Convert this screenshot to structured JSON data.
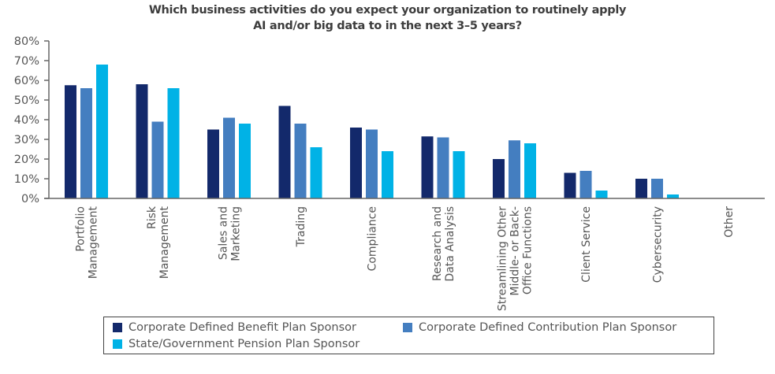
{
  "chart_data": {
    "type": "bar",
    "title": "Which business activities do you expect your organization to routinely apply AI and/or big data to in the next 3–5 years?",
    "title_lines": [
      "Which business activities do you expect your organization to routinely apply",
      "AI and/or big data to in the next 3–5 years?"
    ],
    "xlabel": "",
    "ylabel": "",
    "ylim": [
      0,
      80
    ],
    "y_ticks": [
      0,
      10,
      20,
      30,
      40,
      50,
      60,
      70,
      80
    ],
    "y_tick_labels": [
      "0%",
      "10%",
      "20%",
      "30%",
      "40%",
      "50%",
      "60%",
      "70%",
      "80%"
    ],
    "grid": false,
    "legend_position": "bottom",
    "categories": [
      "Portfolio Management",
      "Risk Management",
      "Sales and Marketing",
      "Trading",
      "Compliance",
      "Research and Data Analysis",
      "Streamlining Other Middle- or Back-Office Functions",
      "Client Service",
      "Cybersecurity",
      "Other"
    ],
    "category_label_lines": [
      [
        "Portfolio",
        "Management"
      ],
      [
        "Risk",
        "Management"
      ],
      [
        "Sales and",
        "Marketing"
      ],
      [
        "Trading"
      ],
      [
        "Compliance"
      ],
      [
        "Research and",
        "Data Analysis"
      ],
      [
        "Streamlining Other",
        "Middle- or Back-",
        "Office Functions"
      ],
      [
        "Client Service"
      ],
      [
        "Cybersecurity"
      ],
      [
        "Other"
      ]
    ],
    "series": [
      {
        "name": "Corporate Defined Benefit Plan Sponsor",
        "color": "#13296b",
        "values": [
          57.5,
          58,
          35,
          47,
          36,
          31.5,
          20,
          13,
          10,
          0
        ]
      },
      {
        "name": "Corporate Defined Contribution Plan Sponsor",
        "color": "#447ec0",
        "values": [
          56,
          39,
          41,
          38,
          35,
          31,
          29.5,
          14,
          10,
          0
        ]
      },
      {
        "name": "State/Government Pension Plan Sponsor",
        "color": "#00b2e6",
        "values": [
          68,
          56,
          38,
          26,
          24,
          24,
          28,
          4,
          2,
          0
        ]
      }
    ]
  }
}
